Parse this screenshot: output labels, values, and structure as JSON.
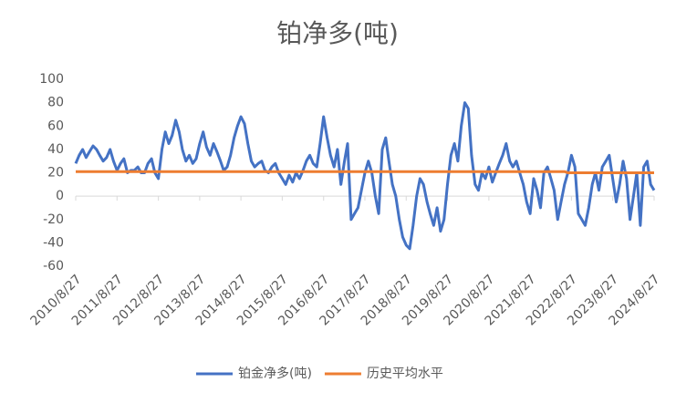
{
  "chart_data": {
    "type": "line",
    "title": "铂净多(吨)",
    "x": [
      "2010/8/27",
      "2010/9/27",
      "2010/10/27",
      "2010/11/27",
      "2010/12/27",
      "2011/1/27",
      "2011/2/27",
      "2011/3/27",
      "2011/4/27",
      "2011/5/27",
      "2011/6/27",
      "2011/7/27",
      "2011/8/27",
      "2011/9/27",
      "2011/10/27",
      "2011/11/27",
      "2011/12/27",
      "2012/1/27",
      "2012/2/27",
      "2012/3/27",
      "2012/4/27",
      "2012/5/27",
      "2012/6/27",
      "2012/7/27",
      "2012/8/27",
      "2012/9/27",
      "2012/10/27",
      "2012/11/27",
      "2012/12/27",
      "2013/1/27",
      "2013/2/27",
      "2013/3/27",
      "2013/4/27",
      "2013/5/27",
      "2013/6/27",
      "2013/7/27",
      "2013/8/27",
      "2013/9/27",
      "2013/10/27",
      "2013/11/27",
      "2013/12/27",
      "2014/1/27",
      "2014/2/27",
      "2014/3/27",
      "2014/4/27",
      "2014/5/27",
      "2014/6/27",
      "2014/7/27",
      "2014/8/27",
      "2014/9/27",
      "2014/10/27",
      "2014/11/27",
      "2014/12/27",
      "2015/1/27",
      "2015/2/27",
      "2015/3/27",
      "2015/4/27",
      "2015/5/27",
      "2015/6/27",
      "2015/7/27",
      "2015/8/27",
      "2015/9/27",
      "2015/10/27",
      "2015/11/27",
      "2015/12/27",
      "2016/1/27",
      "2016/2/27",
      "2016/3/27",
      "2016/4/27",
      "2016/5/27",
      "2016/6/27",
      "2016/7/27",
      "2016/8/27",
      "2016/9/27",
      "2016/10/27",
      "2016/11/27",
      "2016/12/27",
      "2017/1/27",
      "2017/2/27",
      "2017/3/27",
      "2017/4/27",
      "2017/5/27",
      "2017/6/27",
      "2017/7/27",
      "2017/8/27",
      "2017/9/27",
      "2017/10/27",
      "2017/11/27",
      "2017/12/27",
      "2018/1/27",
      "2018/2/27",
      "2018/3/27",
      "2018/4/27",
      "2018/5/27",
      "2018/6/27",
      "2018/7/27",
      "2018/8/27",
      "2018/9/27",
      "2018/10/27",
      "2018/11/27",
      "2018/12/27",
      "2019/1/27",
      "2019/2/27",
      "2019/3/27",
      "2019/4/27",
      "2019/5/27",
      "2019/6/27",
      "2019/7/27",
      "2019/8/27",
      "2019/9/27",
      "2019/10/27",
      "2019/11/27",
      "2019/12/27",
      "2020/1/27",
      "2020/2/27",
      "2020/3/27",
      "2020/4/27",
      "2020/5/27",
      "2020/6/27",
      "2020/7/27",
      "2020/8/27",
      "2020/9/27",
      "2020/10/27",
      "2020/11/27",
      "2020/12/27",
      "2021/1/27",
      "2021/2/27",
      "2021/3/27",
      "2021/4/27",
      "2021/5/27",
      "2021/6/27",
      "2021/7/27",
      "2021/8/27",
      "2021/9/27",
      "2021/10/27",
      "2021/11/27",
      "2021/12/27",
      "2022/1/27",
      "2022/2/27",
      "2022/3/27",
      "2022/4/27",
      "2022/5/27",
      "2022/6/27",
      "2022/7/27",
      "2022/8/27",
      "2022/9/27",
      "2022/10/27",
      "2022/11/27",
      "2022/12/27",
      "2023/1/27",
      "2023/2/27",
      "2023/3/27",
      "2023/4/27",
      "2023/5/27",
      "2023/6/27",
      "2023/7/27",
      "2023/8/27",
      "2023/9/27",
      "2023/10/27",
      "2023/11/27",
      "2023/12/27",
      "2024/1/27",
      "2024/2/27",
      "2024/3/27",
      "2024/4/27",
      "2024/5/27",
      "2024/6/27",
      "2024/7/27",
      "2024/8/27"
    ],
    "series": [
      {
        "name": "铂金净多(吨)",
        "color": "#4472c4",
        "values": [
          28,
          35,
          40,
          33,
          38,
          43,
          40,
          35,
          30,
          33,
          40,
          30,
          22,
          28,
          32,
          20,
          22,
          22,
          25,
          20,
          20,
          28,
          32,
          20,
          15,
          40,
          55,
          45,
          52,
          65,
          55,
          40,
          30,
          35,
          28,
          32,
          45,
          55,
          42,
          35,
          45,
          38,
          30,
          22,
          25,
          35,
          50,
          60,
          68,
          62,
          45,
          30,
          25,
          28,
          30,
          22,
          20,
          25,
          28,
          20,
          15,
          10,
          18,
          12,
          20,
          15,
          22,
          30,
          35,
          28,
          25,
          45,
          68,
          50,
          35,
          25,
          40,
          10,
          30,
          45,
          -20,
          -15,
          -10,
          5,
          20,
          30,
          20,
          0,
          -15,
          40,
          50,
          30,
          10,
          0,
          -20,
          -35,
          -42,
          -45,
          -25,
          0,
          15,
          10,
          -5,
          -15,
          -25,
          -10,
          -30,
          -20,
          10,
          35,
          45,
          30,
          60,
          80,
          75,
          35,
          10,
          5,
          20,
          15,
          25,
          12,
          20,
          28,
          35,
          45,
          30,
          25,
          30,
          20,
          10,
          -5,
          -15,
          15,
          5,
          -10,
          20,
          25,
          15,
          5,
          -20,
          -5,
          10,
          20,
          35,
          25,
          -15,
          -20,
          -25,
          -10,
          10,
          20,
          5,
          25,
          30,
          35,
          15,
          -5,
          10,
          30,
          15,
          -20,
          0,
          20,
          -25,
          25,
          30,
          10,
          5
        ]
      },
      {
        "name": "历史平均水平",
        "color": "#ed7d31",
        "values": [
          21,
          21,
          21,
          21,
          21,
          21,
          21,
          21,
          21,
          21,
          21,
          21,
          21,
          21,
          21,
          21,
          21,
          21,
          21,
          21,
          21,
          21,
          21,
          21,
          21,
          21,
          21,
          21,
          21,
          21,
          21,
          21,
          21,
          21,
          21,
          21,
          21,
          21,
          21,
          21,
          21,
          21,
          21,
          21,
          21,
          21,
          21,
          21,
          21,
          21,
          21,
          21,
          21,
          21,
          21,
          21,
          21,
          21,
          21,
          21,
          21,
          21,
          21,
          21,
          21,
          21,
          21,
          21,
          21,
          21,
          21,
          21,
          21,
          21,
          21,
          21,
          21,
          21,
          21,
          21,
          21,
          21,
          21,
          21,
          21,
          21,
          21,
          21,
          21,
          21,
          21,
          21,
          21,
          21,
          21,
          21,
          21,
          21,
          21,
          21,
          21,
          21,
          21,
          21,
          21,
          21,
          21,
          21,
          21,
          21,
          21,
          21,
          21,
          21,
          21,
          21,
          21,
          21,
          21,
          21,
          21,
          21,
          21,
          21,
          21,
          21,
          21,
          21,
          21,
          21,
          21,
          21,
          21,
          21,
          21,
          21,
          21,
          21,
          21,
          21,
          21,
          21,
          21,
          20,
          20,
          20,
          20,
          20,
          20,
          20,
          20,
          20,
          20,
          20,
          20,
          20,
          20,
          20,
          20,
          20,
          20,
          20,
          20,
          20,
          20,
          20,
          20,
          20,
          20
        ]
      }
    ],
    "xlim": [
      "2010/8/27",
      "2024/8/27"
    ],
    "xticks": [
      "2010/8/27",
      "2011/8/27",
      "2012/8/27",
      "2013/8/27",
      "2014/8/27",
      "2015/8/27",
      "2016/8/27",
      "2017/8/27",
      "2018/8/27",
      "2019/8/27",
      "2020/8/27",
      "2021/8/27",
      "2022/8/27",
      "2023/8/27",
      "2024/8/27"
    ],
    "ylim": [
      -60,
      100
    ],
    "yticks": [
      -60,
      -40,
      -20,
      0,
      20,
      40,
      60,
      80,
      100
    ],
    "grid": false
  }
}
